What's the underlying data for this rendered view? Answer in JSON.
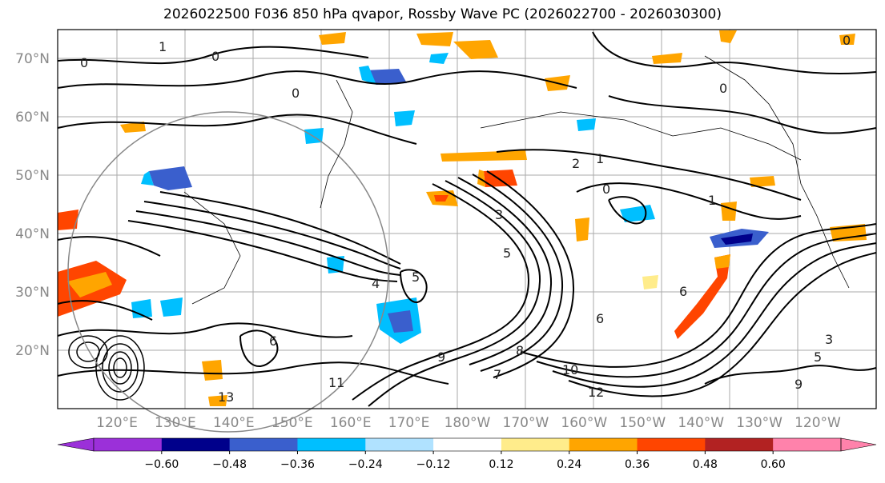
{
  "title": "2026022500 F036 850 hPa qvapor, Rossby Wave PC (2026022700 - 2026030300)",
  "lat_labels": [
    "70°N",
    "60°N",
    "50°N",
    "40°N",
    "30°N",
    "20°N"
  ],
  "lon_labels": [
    "120°E",
    "130°E",
    "140°E",
    "150°E",
    "160°E",
    "170°E",
    "180°W",
    "170°W",
    "160°W",
    "150°W",
    "140°W",
    "130°W",
    "120°W"
  ],
  "colorbar": {
    "ticks": [
      "−0.60",
      "−0.48",
      "−0.36",
      "−0.24",
      "−0.12",
      "0.12",
      "0.24",
      "0.36",
      "0.48",
      "0.60"
    ],
    "colors": [
      "#9b30d9",
      "#00008b",
      "#3a5fcd",
      "#00bfff",
      "#b0e2ff",
      "#ffffff",
      "#ffec8b",
      "#ffa500",
      "#ff4500",
      "#b22222",
      "#ff82ab"
    ],
    "extend_low": "#9b30d9",
    "extend_high": "#ff82ab"
  },
  "contour_labels": [
    "1",
    "0",
    "0",
    "0",
    "0",
    "0",
    "2",
    "1",
    "0",
    "3",
    "5",
    "4",
    "5",
    "6",
    "9",
    "10",
    "12",
    "11",
    "13",
    "7",
    "8",
    "6",
    "5",
    "3",
    "9",
    "6",
    "1"
  ]
}
